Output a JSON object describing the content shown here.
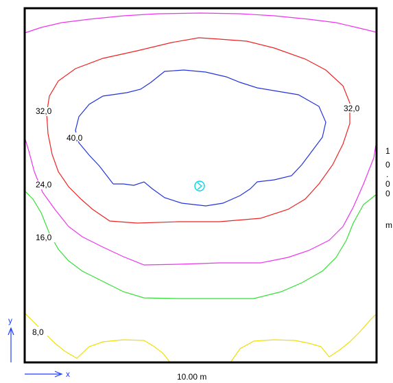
{
  "figure": {
    "width_label": "10.00 m",
    "height_label_chars": [
      "1",
      "0",
      ".",
      "0",
      "0",
      "m"
    ],
    "axis_x": "x",
    "axis_y": "y"
  },
  "contours": [
    {
      "level": 8.0,
      "label": "8,0",
      "color": "#f0e000"
    },
    {
      "level": 16.0,
      "label": "16,0",
      "color": "#33e033"
    },
    {
      "level": 24.0,
      "label": "24,0",
      "color": "#ee33ee"
    },
    {
      "level": 32.0,
      "label": "32,0",
      "color": "#ee2222"
    },
    {
      "level": 40.0,
      "label": "40,0",
      "color": "#2233dd"
    }
  ],
  "source_marker": {
    "color": "#00d8e8",
    "icon": "light-source-marker-icon"
  }
}
